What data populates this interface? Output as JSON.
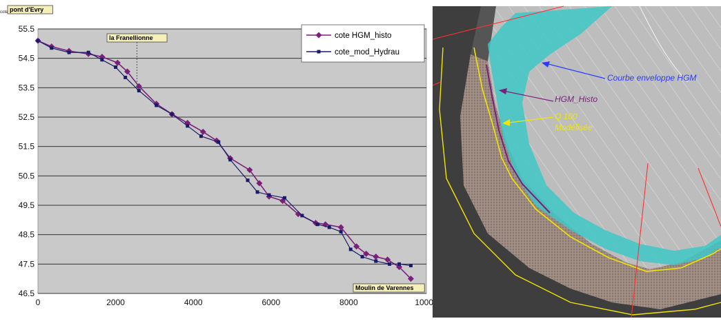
{
  "chart_data": {
    "type": "line",
    "ylabel": "cote NGF",
    "xlim": [
      0,
      10000
    ],
    "ylim": [
      46.5,
      55.5
    ],
    "x_ticks": [
      0,
      2000,
      4000,
      6000,
      8000,
      10000
    ],
    "y_ticks": [
      55.5,
      54.5,
      53.5,
      52.5,
      51.5,
      50.5,
      49.5,
      48.5,
      47.5,
      46.5
    ],
    "grid": "horizontal",
    "legend_position": "top-right",
    "annotations": [
      {
        "text": "pont d'Evry",
        "x": 0,
        "y": 55.5
      },
      {
        "text": "la Franellionne",
        "x": 2550,
        "y": 55.2
      },
      {
        "text": "Moulin de Varennes",
        "x": 9700,
        "y": 46.7
      }
    ],
    "series": [
      {
        "name": "cote HGM_histo",
        "color": "#7a1f7a",
        "marker": "diamond",
        "x": [
          0,
          350,
          800,
          1300,
          1650,
          2050,
          2300,
          2600,
          3050,
          3450,
          3850,
          4250,
          4600,
          4950,
          5450,
          5700,
          5950,
          6300,
          6700,
          7150,
          7400,
          7800,
          8200,
          8450,
          8700,
          9000,
          9300,
          9600
        ],
        "values": [
          55.1,
          54.9,
          54.75,
          54.65,
          54.55,
          54.35,
          54.05,
          53.55,
          52.95,
          52.6,
          52.3,
          52.0,
          51.7,
          51.1,
          50.7,
          50.25,
          49.8,
          49.65,
          49.2,
          48.9,
          48.85,
          48.75,
          48.1,
          47.85,
          47.75,
          47.65,
          47.4,
          47.0
        ]
      },
      {
        "name": "cote_mod_Hydrau",
        "color": "#1a1a6a",
        "marker": "square",
        "x": [
          0,
          350,
          800,
          1300,
          1650,
          2000,
          2250,
          2600,
          3050,
          3450,
          3850,
          4200,
          4650,
          4950,
          5400,
          5650,
          5950,
          6350,
          6800,
          7200,
          7500,
          7800,
          8050,
          8350,
          8700,
          9050,
          9300,
          9600
        ],
        "values": [
          55.1,
          54.85,
          54.7,
          54.7,
          54.45,
          54.2,
          53.85,
          53.4,
          52.9,
          52.6,
          52.2,
          51.85,
          51.65,
          51.05,
          50.35,
          49.95,
          49.85,
          49.75,
          49.15,
          48.85,
          48.75,
          48.6,
          48.0,
          47.75,
          47.6,
          47.5,
          47.5,
          47.45
        ]
      }
    ]
  },
  "map": {
    "labels": {
      "courbe": "Courbe enveloppe HGM",
      "hgm_histo": "HGM_Histo",
      "q100_line1": "Q 100",
      "q100_line2": "Modélisée"
    },
    "colors": {
      "courbe": "#2b3cff",
      "hgm_histo": "#7a1f7a",
      "q100": "#f2e600",
      "envelope_fill": "#3fc7c7",
      "parcel_lines": "#ff3030"
    }
  }
}
